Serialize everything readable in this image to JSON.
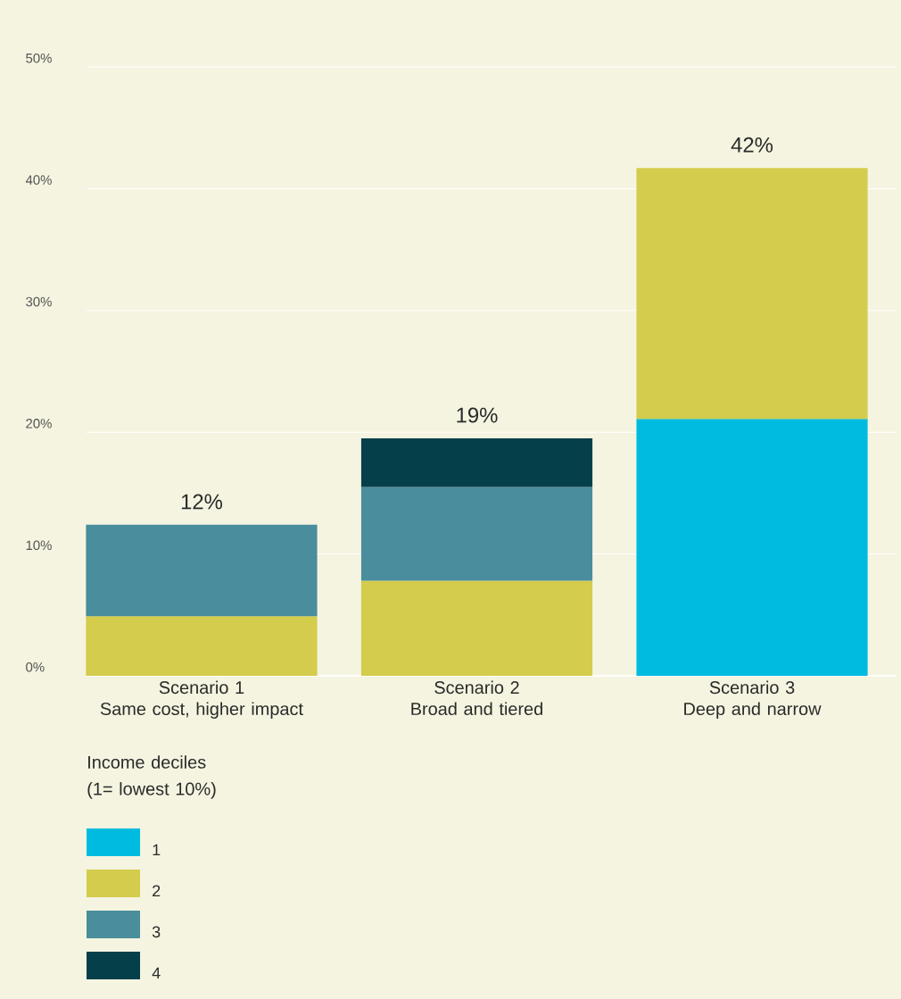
{
  "chart_data": {
    "type": "bar",
    "stacked": true,
    "categories": [
      "Scenario 1\nSame cost, higher impact",
      "Scenario 2\nBroad and tiered",
      "Scenario 3\nDeep and narrow"
    ],
    "series": [
      {
        "name": "1",
        "color": "#00bbe0",
        "values": [
          null,
          null,
          21.1
        ]
      },
      {
        "name": "2",
        "color": "#d4cc4c",
        "values": [
          4.9,
          7.8,
          20.6
        ]
      },
      {
        "name": "3",
        "color": "#4a8d9c",
        "values": [
          7.5,
          7.7,
          null
        ]
      },
      {
        "name": "4",
        "color": "#053f4a",
        "values": [
          null,
          4.0,
          null
        ]
      }
    ],
    "ylim": [
      0,
      50
    ],
    "yticks": [
      {
        "value": 0,
        "label": "0%"
      },
      {
        "value": 10,
        "label": "10%"
      },
      {
        "value": 20,
        "label": "20%"
      },
      {
        "value": 30,
        "label": "30%"
      },
      {
        "value": 40,
        "label": "40%"
      },
      {
        "value": 50,
        "label": "50%"
      }
    ],
    "grid": "y",
    "legend": "bottom left",
    "legend_title": "Income deciles\n(1= lowest 10%)",
    "totals": [
      "12%",
      "19%",
      "42%"
    ]
  }
}
